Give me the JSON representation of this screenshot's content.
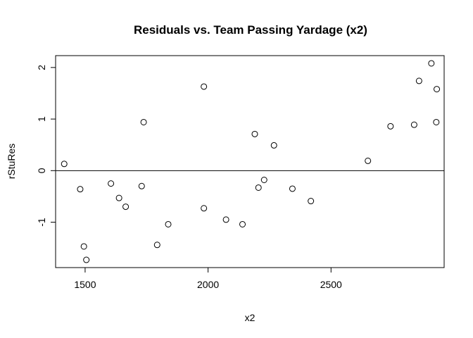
{
  "chart_data": {
    "type": "scatter",
    "title": "Residuals vs. Team Passing Yardage (x2)",
    "xlabel": "x2",
    "ylabel": "rStuRes",
    "xlim": [
      1380,
      2960
    ],
    "ylim": [
      -1.88,
      2.23
    ],
    "xticks": [
      1500,
      2000,
      2500
    ],
    "xtick_labels": [
      "1500",
      "2000",
      "2500"
    ],
    "yticks": [
      -1,
      0,
      1,
      2
    ],
    "ytick_labels": [
      "-1",
      "0",
      "1",
      "2"
    ],
    "reference_line_y": 0,
    "grid": false,
    "legend": false,
    "marker_color": "#000000",
    "points": [
      {
        "x": 1415,
        "y": 0.13
      },
      {
        "x": 1480,
        "y": -0.36
      },
      {
        "x": 1495,
        "y": -1.47
      },
      {
        "x": 1505,
        "y": -1.73
      },
      {
        "x": 1605,
        "y": -0.25
      },
      {
        "x": 1638,
        "y": -0.53
      },
      {
        "x": 1665,
        "y": -0.7
      },
      {
        "x": 1730,
        "y": -0.3
      },
      {
        "x": 1738,
        "y": 0.94
      },
      {
        "x": 1793,
        "y": -1.44
      },
      {
        "x": 1838,
        "y": -1.04
      },
      {
        "x": 1983,
        "y": 1.63
      },
      {
        "x": 1983,
        "y": -0.73
      },
      {
        "x": 2073,
        "y": -0.95
      },
      {
        "x": 2140,
        "y": -1.04
      },
      {
        "x": 2190,
        "y": 0.71
      },
      {
        "x": 2205,
        "y": -0.33
      },
      {
        "x": 2228,
        "y": -0.18
      },
      {
        "x": 2268,
        "y": 0.49
      },
      {
        "x": 2343,
        "y": -0.35
      },
      {
        "x": 2418,
        "y": -0.59
      },
      {
        "x": 2650,
        "y": 0.19
      },
      {
        "x": 2742,
        "y": 0.86
      },
      {
        "x": 2838,
        "y": 0.89
      },
      {
        "x": 2858,
        "y": 1.74
      },
      {
        "x": 2908,
        "y": 2.08
      },
      {
        "x": 2928,
        "y": 0.94
      },
      {
        "x": 2930,
        "y": 1.58
      }
    ]
  }
}
